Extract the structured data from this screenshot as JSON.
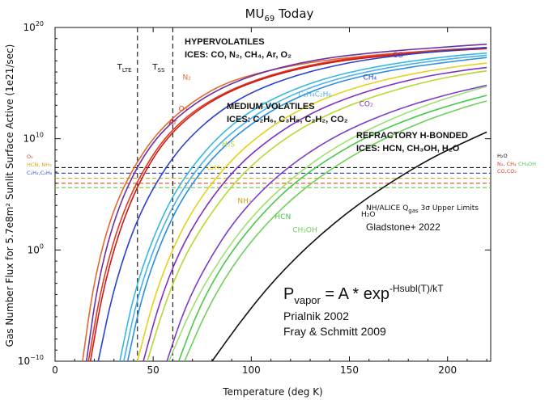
{
  "chart_data": {
    "type": "line",
    "title_main": "MU",
    "title_sub": "69",
    "title_rest": " Today",
    "xlabel": "Temperature (deg K)",
    "ylabel": "Gas Number Flux for 5.7e8m² Sunlit Surface Active (1e21/sec)",
    "xlim": [
      0,
      222
    ],
    "ylog_lim": [
      -10,
      20
    ],
    "x_ticks": [
      0,
      50,
      100,
      150,
      200
    ],
    "x_tick_labels": [
      "0",
      "50",
      "100",
      "150",
      "200"
    ],
    "y_ticks": [
      {
        "exp": 20,
        "label": "10",
        "sup": "20"
      },
      {
        "exp": 10,
        "label": "10",
        "sup": "10"
      },
      {
        "exp": 0,
        "label": "10",
        "sup": "0"
      },
      {
        "exp": -10,
        "label": "10",
        "sup": "−10"
      }
    ],
    "vlines": [
      {
        "x": 42,
        "label": "T",
        "sub": "LTE"
      },
      {
        "x": 60,
        "label": "T",
        "sub": "SS"
      }
    ],
    "series": [
      {
        "name": "N₂",
        "color": "#e26a2c",
        "x": [
          14,
          20,
          30,
          45,
          60,
          80,
          100,
          130,
          160,
          190,
          220
        ],
        "y": [
          -10,
          -2.5,
          4,
          9,
          12,
          14.5,
          15.8,
          16.9,
          17.5,
          17.9,
          18.2
        ]
      },
      {
        "name": "O₂",
        "color": "#e03a1e",
        "x": [
          17,
          24,
          35,
          50,
          65,
          85,
          110,
          140,
          170,
          200,
          220
        ],
        "y": [
          -10,
          -2.8,
          3.8,
          8.8,
          11.8,
          14.1,
          15.8,
          17,
          17.6,
          18,
          18.2
        ]
      },
      {
        "name": "Ar",
        "color": "#cc1a1a",
        "x": [
          18,
          25,
          36,
          50,
          65,
          85,
          110,
          140,
          170,
          200,
          220
        ],
        "y": [
          -10,
          -3,
          3.5,
          8.5,
          11.6,
          14,
          15.7,
          16.9,
          17.5,
          17.9,
          18.1
        ]
      },
      {
        "name": "CO",
        "color": "#6a30a8",
        "x": [
          16,
          22,
          32,
          46,
          62,
          82,
          105,
          135,
          165,
          195,
          220
        ],
        "y": [
          -10,
          -2.6,
          3.9,
          8.9,
          12,
          14.4,
          16,
          17.2,
          17.8,
          18.2,
          18.5
        ]
      },
      {
        "name": "CH₄",
        "color": "#2a3fcf",
        "x": [
          22,
          30,
          42,
          58,
          75,
          95,
          120,
          150,
          180,
          205,
          220
        ],
        "y": [
          -10,
          -3.3,
          3,
          8,
          11.3,
          13.8,
          15.6,
          16.9,
          17.6,
          18,
          18.2
        ]
      },
      {
        "name": "C₂H₄",
        "color": "#35b8e0",
        "x": [
          33,
          40,
          50,
          62,
          78,
          95,
          115,
          140,
          170,
          200,
          220
        ],
        "y": [
          -10,
          -4,
          1.2,
          5.6,
          9.3,
          12,
          14,
          15.6,
          16.7,
          17.4,
          17.7
        ]
      },
      {
        "name": "C₂H₆",
        "color": "#4ab0e6",
        "x": [
          35,
          42,
          52,
          64,
          80,
          98,
          118,
          143,
          172,
          202,
          220
        ],
        "y": [
          -10,
          -4.2,
          1,
          5.3,
          9,
          11.7,
          13.8,
          15.4,
          16.5,
          17.2,
          17.5
        ]
      },
      {
        "name": "C₃H₈",
        "color": "#2a8ee0",
        "x": [
          37,
          44,
          54,
          66,
          82,
          100,
          120,
          145,
          175,
          205,
          220
        ],
        "y": [
          -10,
          -4.3,
          0.8,
          5.1,
          8.7,
          11.4,
          13.5,
          15.2,
          16.3,
          17,
          17.3
        ]
      },
      {
        "name": "C₂H₂",
        "color": "#e3d21a",
        "x": [
          42,
          50,
          60,
          72,
          88,
          105,
          125,
          150,
          180,
          205,
          220
        ],
        "y": [
          -10,
          -4.5,
          0.2,
          4.2,
          7.8,
          10.5,
          12.7,
          14.5,
          15.8,
          16.5,
          16.8
        ]
      },
      {
        "name": "CO₂",
        "color": "#8030c0",
        "x": [
          45,
          53,
          63,
          76,
          92,
          110,
          130,
          155,
          185,
          210,
          220
        ],
        "y": [
          -10,
          -4.8,
          -0.2,
          3.8,
          7.4,
          10.1,
          12.3,
          14.1,
          15.5,
          16.2,
          16.4
        ]
      },
      {
        "name": "H₂S",
        "color": "#b6d832",
        "x": [
          47,
          56,
          66,
          80,
          96,
          115,
          135,
          160,
          190,
          212,
          220
        ],
        "y": [
          -10,
          -4.8,
          -0.5,
          3.5,
          7,
          9.8,
          11.9,
          13.7,
          15.2,
          15.9,
          16.1
        ]
      },
      {
        "name": "NH₃",
        "color": "#7a3ec8",
        "x": [
          57,
          66,
          78,
          92,
          110,
          130,
          150,
          175,
          200,
          220
        ],
        "y": [
          -10,
          -5.2,
          -1,
          2.8,
          6.2,
          8.9,
          10.9,
          12.7,
          14,
          14.8
        ]
      },
      {
        "name": "HCN",
        "color": "#48c84a",
        "x": [
          63,
          73,
          86,
          102,
          120,
          140,
          160,
          185,
          205,
          220
        ],
        "y": [
          -10,
          -5.3,
          -1.1,
          2.6,
          5.8,
          8.3,
          10.3,
          12.1,
          13.2,
          13.9
        ]
      },
      {
        "name": "CH₃OH",
        "color": "#6fd05a",
        "x": [
          66,
          77,
          90,
          106,
          125,
          145,
          165,
          188,
          208,
          220
        ],
        "y": [
          -10,
          -5.5,
          -1.5,
          2.1,
          5.3,
          7.8,
          9.8,
          11.6,
          12.8,
          13.4
        ]
      },
      {
        "name": "C₂H₆ (alt)",
        "color": "#9ee070",
        "x": [
          58,
          70,
          84,
          100,
          120,
          142,
          165,
          190,
          210,
          220
        ],
        "y": [
          -10,
          -5,
          -0.8,
          3,
          6.4,
          9.2,
          11.3,
          13.1,
          14.2,
          14.7
        ]
      },
      {
        "name": "H₂O",
        "color": "#111111",
        "x": [
          80,
          95,
          112,
          132,
          152,
          172,
          192,
          210,
          220
        ],
        "y": [
          -10,
          -6.3,
          -2.6,
          0.9,
          3.8,
          6.2,
          8.3,
          9.8,
          10.6
        ]
      }
    ],
    "hlines": [
      {
        "y": 7.4,
        "color": "#111111"
      },
      {
        "y": 6.9,
        "color": "#3b52d4"
      },
      {
        "y": 6.45,
        "color": "#d4a21e"
      },
      {
        "y": 6.0,
        "color": "#e0603a"
      },
      {
        "y": 5.6,
        "color": "#7fcc4a"
      }
    ],
    "group_labels": [
      {
        "line1": "HYPERVOLATILES",
        "line2": "ICES: CO, N₂, CH₄, Ar, O₂"
      },
      {
        "line1": "MEDIUM VOLATILES",
        "line2": "ICES: C₂H₆, C₃H₈, C₂H₂, CO₂"
      },
      {
        "line1": "REFRACTORY H-BONDED",
        "line2": "ICES: HCN, CH₃OH, H₂O"
      }
    ],
    "curve_labels": [
      {
        "text": "CO",
        "color": "#6a30a8",
        "x": 172,
        "y": 17.3
      },
      {
        "text": "CH₄",
        "color": "#2a3fcf",
        "x": 157,
        "y": 15.3
      },
      {
        "text": "N₂",
        "color": "#e26a2c",
        "x": 65,
        "y": 15.3
      },
      {
        "text": "O₂",
        "color": "#e03a1e",
        "x": 63,
        "y": 12.5
      },
      {
        "text": "Ar",
        "color": "#cc1a1a",
        "x": 58,
        "y": 11.3
      },
      {
        "text": "C₂H₄",
        "color": "#35b8e0",
        "x": 105,
        "y": 12.8
      },
      {
        "text": "C₂H₄C₂H₆",
        "color": "#4ab0e6",
        "x": 124,
        "y": 13.8
      },
      {
        "text": "CO₂",
        "color": "#8030c0",
        "x": 155,
        "y": 12.9
      },
      {
        "text": "H₂S",
        "color": "#b6d832",
        "x": 85,
        "y": 9.3
      },
      {
        "text": "C₂H₂",
        "color": "#e3d21a",
        "x": 77,
        "y": 7.2
      },
      {
        "text": "NH₃",
        "color": "#d4a21e",
        "x": 93,
        "y": 4.2
      },
      {
        "text": "HCN",
        "color": "#48c84a",
        "x": 112,
        "y": 2.8
      },
      {
        "text": "CH₃OH",
        "color": "#6fd05a",
        "x": 121,
        "y": 1.6
      },
      {
        "text": "H₂O",
        "color": "#111111",
        "x": 156,
        "y": 3.0
      }
    ],
    "left_markers": [
      {
        "text": "O₂",
        "color": "#e03a1e"
      },
      {
        "text": "HCN, NH₃",
        "color": "#d4a21e"
      },
      {
        "text": "C₂H₄,C₂H₆",
        "color": "#3b52d4"
      }
    ],
    "right_markers": [
      {
        "text": "H₂O",
        "color": "#111111"
      },
      {
        "text": "N₂, CH₄",
        "color": "#e03a1e"
      },
      {
        "text": "CH₃OH",
        "color": "#48c84a"
      },
      {
        "text": "CO,CO₂",
        "color": "#e03a1e"
      }
    ],
    "annotations": {
      "upper_limits": "NH/ALICE Q",
      "upper_limits_sub": "gas",
      "upper_limits_rest": " 3σ Upper Limits",
      "citation": "Gladstone+ 2022",
      "formula_main": "P",
      "formula_sub": "vapor",
      "formula_rest": " = A * exp",
      "formula_sup": "-Hsubl(T)/kT",
      "ref1": "Prialnik 2002",
      "ref2": "Fray & Schmitt 2009"
    }
  }
}
